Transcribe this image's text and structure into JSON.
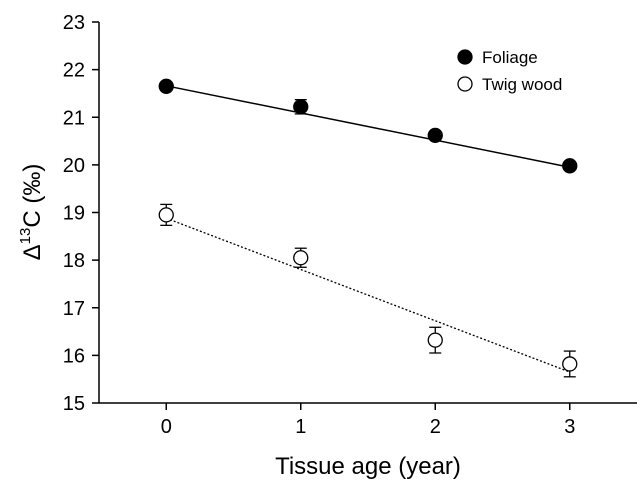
{
  "chart_data": {
    "type": "scatter",
    "xlabel": "Tissue age (year)",
    "ylabel_parts": [
      "Δ",
      "13",
      "C (‰)"
    ],
    "xlim": [
      -0.5,
      3.5
    ],
    "xticks": [
      0,
      1,
      2,
      3
    ],
    "ylim": [
      15,
      23
    ],
    "yticks": [
      15,
      16,
      17,
      18,
      19,
      20,
      21,
      22,
      23
    ],
    "legend": "upper right",
    "series": [
      {
        "name": "Foliage",
        "color": "#000000",
        "filled": true,
        "x": [
          0,
          1,
          2,
          3
        ],
        "values": [
          21.65,
          21.22,
          20.62,
          19.98
        ],
        "errors": [
          0.05,
          0.15,
          0.06,
          0.05
        ],
        "fit_x": [
          0,
          3
        ],
        "fit": [
          21.66,
          19.95
        ],
        "fit_style": "solid"
      },
      {
        "name": "Twig wood",
        "color": "#000000",
        "filled": false,
        "x": [
          0,
          1,
          2,
          3
        ],
        "values": [
          18.95,
          18.05,
          16.32,
          15.82
        ],
        "errors": [
          0.22,
          0.2,
          0.27,
          0.27
        ],
        "fit_x": [
          0,
          3
        ],
        "fit": [
          18.88,
          15.65
        ],
        "fit_style": "dotted"
      }
    ]
  }
}
